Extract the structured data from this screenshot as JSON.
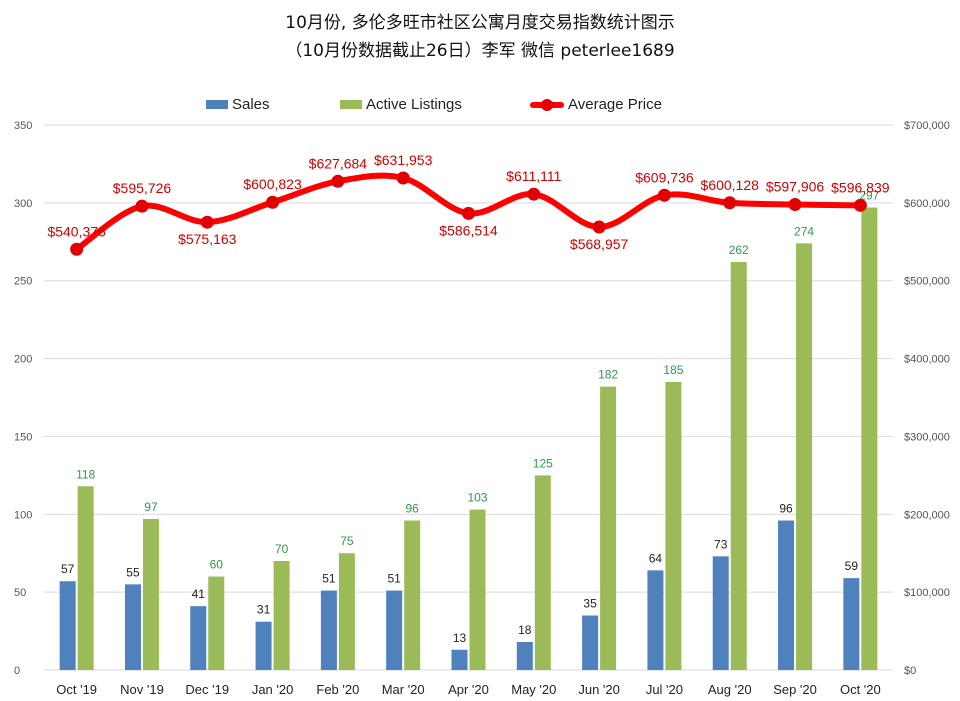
{
  "title_line1": "10月份, 多伦多旺市社区公寓月度交易指数统计图示",
  "title_line2": "（10月份数据截止26日）李军 微信 peterlee1689",
  "legend": {
    "sales": "Sales",
    "active": "Active Listings",
    "avg": "Average Price"
  },
  "colors": {
    "sales": "#4f81bd",
    "active": "#9bbb59",
    "avg": "#ff0000",
    "gridline": "#d9d9d9"
  },
  "left_axis_ticks": [
    "0",
    "50",
    "100",
    "150",
    "200",
    "250",
    "300",
    "350"
  ],
  "right_axis_ticks": [
    "$0",
    "$100,000",
    "$200,000",
    "$300,000",
    "$400,000",
    "$500,000",
    "$600,000",
    "$700,000"
  ],
  "chart_data": {
    "type": "bar",
    "combo_line_series": "Average Price",
    "categories": [
      "Oct '19",
      "Nov '19",
      "Dec '19",
      "Jan '20",
      "Feb '20",
      "Mar '20",
      "Apr '20",
      "May '20",
      "Jun '20",
      "Jul '20",
      "Aug '20",
      "Sep '20",
      "Oct '20"
    ],
    "series": [
      {
        "name": "Sales",
        "axis": "left",
        "values": [
          57,
          55,
          41,
          31,
          51,
          51,
          13,
          18,
          35,
          64,
          73,
          96,
          59
        ]
      },
      {
        "name": "Active Listings",
        "axis": "left",
        "values": [
          118,
          97,
          60,
          70,
          75,
          96,
          103,
          125,
          182,
          185,
          262,
          274,
          297
        ]
      },
      {
        "name": "Average Price",
        "axis": "right",
        "type": "line",
        "values": [
          540376,
          595726,
          575163,
          600823,
          627684,
          631953,
          586514,
          611111,
          568957,
          609736,
          600128,
          597906,
          596839
        ]
      }
    ],
    "avg_labels": [
      "$540,376",
      "$595,726",
      "$575,163",
      "$600,823",
      "$627,684",
      "$631,953",
      "$586,514",
      "$611,111",
      "$568,957",
      "$609,736",
      "$600,128",
      "$597,906",
      "$596,839"
    ],
    "ylim_left": [
      0,
      350
    ],
    "ylim_right": [
      0,
      700000
    ],
    "grid": true,
    "legend_position": "top"
  }
}
